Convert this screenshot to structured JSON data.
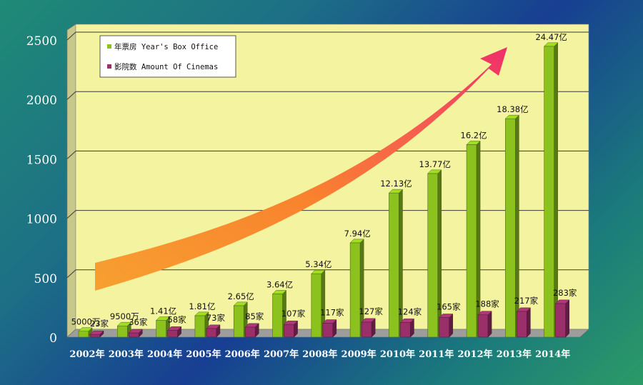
{
  "chart_data": {
    "type": "bar",
    "title": "",
    "xlabel": "",
    "ylabel": "",
    "ylim": [
      0,
      2500
    ],
    "yticks": [
      "0",
      "500",
      "1000",
      "1500",
      "2000",
      "2500"
    ],
    "categories": [
      "2002年",
      "2003年",
      "2004年",
      "2005年",
      "2006年",
      "2007年",
      "2008年",
      "2009年",
      "2010年",
      "2011年",
      "2012年",
      "2013年",
      "2014年"
    ],
    "legend_position": "top-left",
    "grid": true,
    "series": [
      {
        "name": "年票房 Year's Box Office",
        "color": "#8cc21e",
        "values": [
          50,
          95,
          141,
          181,
          265,
          364,
          534,
          794,
          1213,
          1377,
          1620,
          1838,
          2447
        ],
        "labels": [
          "5000万",
          "9500万",
          "1.41亿",
          "1.81亿",
          "2.65亿",
          "3.64亿",
          "5.34亿",
          "7.94亿",
          "12.13亿",
          "13.77亿",
          "16.2亿",
          "18.38亿",
          "24.47亿"
        ]
      },
      {
        "name": "影院数 Amount Of Cinemas",
        "color": "#9b2f6a",
        "values": [
          23,
          36,
          58,
          73,
          85,
          107,
          117,
          127,
          124,
          165,
          188,
          217,
          283
        ],
        "labels": [
          "23家",
          "36家",
          "58家",
          "73家",
          "85家",
          "107家",
          "117家",
          "127家",
          "124家",
          "165家",
          "188家",
          "217家",
          "283家"
        ]
      }
    ]
  }
}
